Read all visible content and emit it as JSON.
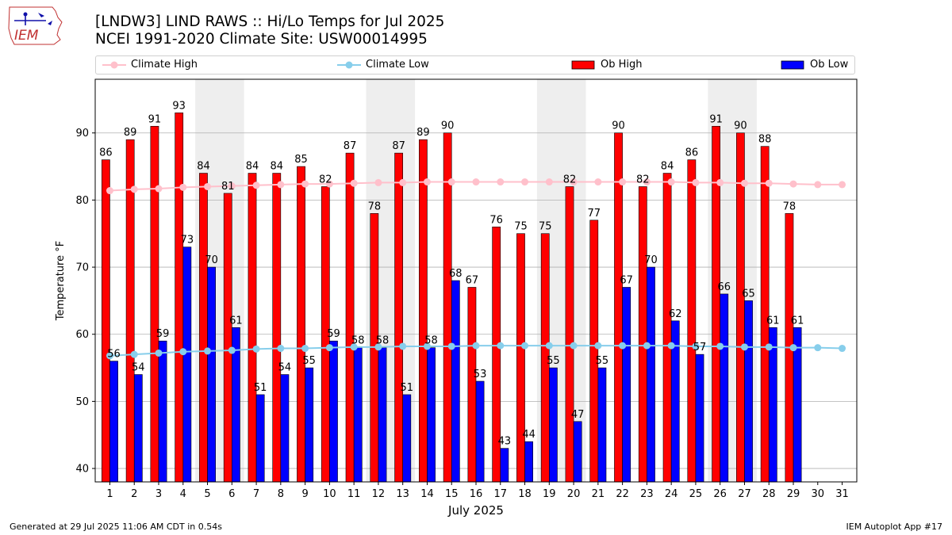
{
  "header": {
    "logo_text": "IEM",
    "title_line1": "[LNDW3] LIND RAWS :: Hi/Lo Temps for Jul 2025",
    "title_line2": "NCEI 1991-2020 Climate Site: USW00014995"
  },
  "legend": {
    "items": [
      {
        "label": "Climate High",
        "color": "#ffc0cb",
        "kind": "line"
      },
      {
        "label": "Climate Low",
        "color": "#87ceeb",
        "kind": "line"
      },
      {
        "label": "Ob High",
        "color": "#ff0000",
        "kind": "bar"
      },
      {
        "label": "Ob Low",
        "color": "#0000ff",
        "kind": "bar"
      }
    ]
  },
  "footer": {
    "left": "Generated at 29 Jul 2025 11:06 AM CDT in 0.54s",
    "right": "IEM Autoplot App #17"
  },
  "chart_data": {
    "type": "bar",
    "title": "[LNDW3] LIND RAWS :: Hi/Lo Temps for Jul 2025",
    "subtitle": "NCEI 1991-2020 Climate Site: USW00014995",
    "xlabel": "July 2025",
    "ylabel": "Temperature °F",
    "ylim": [
      38,
      98
    ],
    "yticks": [
      40,
      50,
      60,
      70,
      80,
      90
    ],
    "grid": "horizontal",
    "legend_placement": "top",
    "weekend_shading": [
      [
        5,
        6
      ],
      [
        12,
        13
      ],
      [
        19,
        20
      ],
      [
        26,
        27
      ]
    ],
    "categories": [
      "1",
      "2",
      "3",
      "4",
      "5",
      "6",
      "7",
      "8",
      "9",
      "10",
      "11",
      "12",
      "13",
      "14",
      "15",
      "16",
      "17",
      "18",
      "19",
      "20",
      "21",
      "22",
      "23",
      "24",
      "25",
      "26",
      "27",
      "28",
      "29",
      "30",
      "31"
    ],
    "series": [
      {
        "name": "Ob High",
        "color": "#ff0000",
        "values": [
          86,
          89,
          91,
          93,
          84,
          81,
          84,
          84,
          85,
          82,
          87,
          78,
          87,
          89,
          90,
          67,
          76,
          75,
          75,
          82,
          77,
          90,
          82,
          84,
          86,
          91,
          90,
          88,
          78,
          null,
          null
        ]
      },
      {
        "name": "Ob Low",
        "color": "#0000ff",
        "values": [
          56,
          54,
          59,
          73,
          70,
          61,
          51,
          54,
          55,
          59,
          58,
          58,
          51,
          58,
          68,
          53,
          43,
          44,
          55,
          47,
          55,
          67,
          70,
          62,
          57,
          66,
          65,
          61,
          61,
          null,
          null
        ]
      },
      {
        "name": "Climate High",
        "color": "#ffc0cb",
        "values": [
          81.4,
          81.6,
          81.7,
          81.9,
          82.0,
          82.1,
          82.2,
          82.3,
          82.4,
          82.4,
          82.5,
          82.6,
          82.6,
          82.7,
          82.7,
          82.7,
          82.7,
          82.7,
          82.7,
          82.7,
          82.7,
          82.7,
          82.7,
          82.7,
          82.6,
          82.6,
          82.5,
          82.5,
          82.4,
          82.3,
          82.3
        ]
      },
      {
        "name": "Climate Low",
        "color": "#87ceeb",
        "values": [
          56.8,
          57.0,
          57.2,
          57.4,
          57.5,
          57.6,
          57.8,
          57.9,
          57.9,
          58.0,
          58.1,
          58.1,
          58.2,
          58.2,
          58.2,
          58.3,
          58.3,
          58.3,
          58.3,
          58.3,
          58.3,
          58.3,
          58.3,
          58.3,
          58.2,
          58.2,
          58.1,
          58.1,
          58.0,
          58.0,
          57.9
        ]
      }
    ]
  }
}
